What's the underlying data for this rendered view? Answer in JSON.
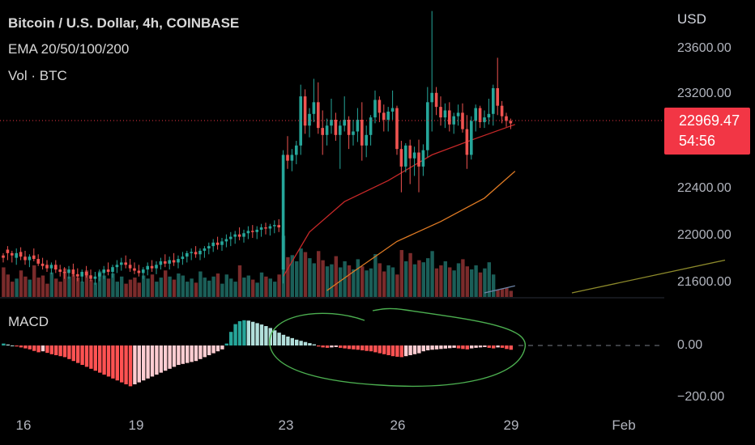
{
  "header": {
    "title": "Bitcoin / U.S. Dollar, 4h, COINBASE",
    "ema_label": "EMA 20/50/100/200",
    "vol_label": "Vol · BTC",
    "macd_label": "MACD"
  },
  "price_axis": {
    "currency": "USD",
    "ticks": [
      "23600.00",
      "23200.00",
      "22400.00",
      "22000.00",
      "21600.00"
    ],
    "macd_ticks": [
      "0.00",
      "−200.00"
    ]
  },
  "time_axis": {
    "ticks": [
      "16",
      "19",
      "23",
      "26",
      "29",
      "Feb"
    ]
  },
  "last_price": {
    "price": "22969.47",
    "countdown": "54:56"
  },
  "colors": {
    "up": "#26a69a",
    "down": "#ef5350",
    "up_volume": "#1b5e58",
    "down_volume": "#7a2b2b",
    "macd_up_strong": "#26a69a",
    "macd_up_weak": "#b2dfdb",
    "macd_down_strong": "#ff5252",
    "macd_down_weak": "#ffcdd2",
    "ema20": "#c62828",
    "ema50": "#e07b24",
    "ema100": "#8d8a2b",
    "annotation": "#4caf50",
    "price_line": "#f23645"
  },
  "chart_data": {
    "type": "candlestick",
    "timeframe": "4h",
    "y_range": [
      21520,
      23900
    ],
    "macd_range": [
      -260,
      130
    ],
    "candles": [
      [
        21840,
        21860,
        21780,
        21820
      ],
      [
        21890,
        21920,
        21800,
        21860
      ],
      [
        21860,
        21880,
        21780,
        21840
      ],
      [
        21820,
        21900,
        21760,
        21860
      ],
      [
        21870,
        21910,
        21800,
        21830
      ],
      [
        21830,
        21880,
        21760,
        21800
      ],
      [
        21800,
        21850,
        21740,
        21830
      ],
      [
        21840,
        21900,
        21790,
        21810
      ],
      [
        21810,
        21850,
        21750,
        21770
      ],
      [
        21770,
        21820,
        21720,
        21750
      ],
      [
        21760,
        21800,
        21700,
        21730
      ],
      [
        21730,
        21780,
        21680,
        21760
      ],
      [
        21760,
        21800,
        21690,
        21720
      ],
      [
        21720,
        21760,
        21660,
        21700
      ],
      [
        21700,
        21740,
        21640,
        21690
      ],
      [
        21690,
        21750,
        21640,
        21720
      ],
      [
        21720,
        21770,
        21660,
        21680
      ],
      [
        21680,
        21730,
        21620,
        21660
      ],
      [
        21660,
        21720,
        21610,
        21700
      ],
      [
        21700,
        21750,
        21650,
        21670
      ],
      [
        21670,
        21720,
        21620,
        21640
      ],
      [
        21640,
        21700,
        21590,
        21660
      ],
      [
        21660,
        21720,
        21620,
        21690
      ],
      [
        21690,
        21750,
        21640,
        21720
      ],
      [
        21720,
        21780,
        21670,
        21700
      ],
      [
        21700,
        21760,
        21650,
        21740
      ],
      [
        21740,
        21800,
        21690,
        21760
      ],
      [
        21760,
        21820,
        21710,
        21780
      ],
      [
        21780,
        21840,
        21730,
        21760
      ],
      [
        21760,
        21810,
        21700,
        21730
      ],
      [
        21730,
        21780,
        21680,
        21710
      ],
      [
        21710,
        21760,
        21660,
        21690
      ],
      [
        21690,
        21740,
        21640,
        21720
      ],
      [
        21720,
        21780,
        21670,
        21750
      ],
      [
        21750,
        21800,
        21700,
        21730
      ],
      [
        21730,
        21790,
        21680,
        21760
      ],
      [
        21760,
        21820,
        21720,
        21790
      ],
      [
        21790,
        21850,
        21740,
        21770
      ],
      [
        21770,
        21830,
        21720,
        21800
      ],
      [
        21800,
        21860,
        21750,
        21780
      ],
      [
        21780,
        21840,
        21730,
        21810
      ],
      [
        21810,
        21870,
        21760,
        21830
      ],
      [
        21830,
        21880,
        21780,
        21860
      ],
      [
        21860,
        21900,
        21800,
        21870
      ],
      [
        21870,
        21920,
        21820,
        21850
      ],
      [
        21850,
        21900,
        21800,
        21880
      ],
      [
        21880,
        21920,
        21820,
        21900
      ],
      [
        21900,
        21950,
        21850,
        21920
      ],
      [
        21920,
        21980,
        21870,
        21950
      ],
      [
        21950,
        22000,
        21890,
        21930
      ],
      [
        21930,
        21990,
        21880,
        21960
      ],
      [
        21960,
        22020,
        21910,
        21980
      ],
      [
        21980,
        22040,
        21920,
        22000
      ],
      [
        22000,
        22050,
        21940,
        22020
      ],
      [
        22020,
        22080,
        21970,
        22000
      ],
      [
        22000,
        22060,
        21950,
        22030
      ],
      [
        22030,
        22090,
        21980,
        22050
      ],
      [
        22050,
        22100,
        21990,
        22040
      ],
      [
        22040,
        22090,
        21980,
        22060
      ],
      [
        22060,
        22110,
        22000,
        22080
      ],
      [
        22080,
        22120,
        22020,
        22070
      ],
      [
        22070,
        22110,
        22010,
        22090
      ],
      [
        22090,
        22140,
        22030,
        22100
      ],
      [
        22100,
        22150,
        22040,
        22080
      ],
      [
        21720,
        22740,
        21600,
        22700
      ],
      [
        22700,
        22860,
        22580,
        22650
      ],
      [
        22650,
        22750,
        22560,
        22700
      ],
      [
        22700,
        22820,
        22620,
        22780
      ],
      [
        22780,
        23300,
        22700,
        23200
      ],
      [
        23200,
        23260,
        22880,
        22950
      ],
      [
        22950,
        23100,
        22850,
        23050
      ],
      [
        23050,
        23350,
        22980,
        23150
      ],
      [
        23150,
        23320,
        22880,
        22930
      ],
      [
        22930,
        23080,
        22700,
        22870
      ],
      [
        22870,
        23010,
        22780,
        22950
      ],
      [
        22950,
        23180,
        22880,
        23000
      ],
      [
        23000,
        23060,
        22820,
        22870
      ],
      [
        22870,
        22990,
        22580,
        22950
      ],
      [
        22950,
        23200,
        22900,
        23000
      ],
      [
        23000,
        23030,
        22750,
        22870
      ],
      [
        22870,
        23000,
        22780,
        22900
      ],
      [
        22900,
        23100,
        22810,
        23000
      ],
      [
        23000,
        23150,
        22650,
        22780
      ],
      [
        22780,
        22950,
        22680,
        22870
      ],
      [
        22870,
        23040,
        22780,
        23020
      ],
      [
        23020,
        23250,
        22970,
        23170
      ],
      [
        23170,
        23200,
        22980,
        23060
      ],
      [
        23060,
        23130,
        22900,
        23000
      ],
      [
        23000,
        23110,
        22900,
        23070
      ],
      [
        23070,
        23250,
        23000,
        23100
      ],
      [
        23100,
        23120,
        22700,
        22750
      ],
      [
        22750,
        22820,
        22380,
        22600
      ],
      [
        22600,
        22800,
        22550,
        22780
      ],
      [
        22780,
        22830,
        22450,
        22670
      ],
      [
        22670,
        22770,
        22520,
        22720
      ],
      [
        22720,
        22830,
        22380,
        22600
      ],
      [
        22600,
        22790,
        22520,
        22740
      ],
      [
        22740,
        23280,
        22680,
        23150
      ],
      [
        23150,
        23930,
        22900,
        23230
      ],
      [
        23230,
        23280,
        23040,
        23110
      ],
      [
        23110,
        23200,
        22950,
        23020
      ],
      [
        23020,
        23140,
        22930,
        23080
      ],
      [
        23080,
        23150,
        22900,
        22960
      ],
      [
        22960,
        23060,
        22880,
        23030
      ],
      [
        23030,
        23130,
        22950,
        23060
      ],
      [
        23060,
        23140,
        22890,
        22920
      ],
      [
        22920,
        23040,
        22580,
        22700
      ],
      [
        22700,
        23030,
        22660,
        22990
      ],
      [
        22990,
        23130,
        22900,
        23100
      ],
      [
        23100,
        23120,
        22930,
        22980
      ],
      [
        22980,
        23080,
        22930,
        23020
      ],
      [
        23020,
        23180,
        22960,
        23050
      ],
      [
        23050,
        23300,
        22950,
        23270
      ],
      [
        23270,
        23530,
        23040,
        23120
      ],
      [
        23120,
        23160,
        22970,
        23030
      ],
      [
        23030,
        23060,
        22940,
        22990
      ],
      [
        22990,
        23010,
        22920,
        22969.47
      ]
    ],
    "volume": [
      58,
      44,
      30,
      36,
      52,
      40,
      34,
      62,
      38,
      42,
      26,
      48,
      36,
      30,
      56,
      40,
      44,
      38,
      30,
      52,
      34,
      28,
      50,
      42,
      36,
      46,
      30,
      40,
      26,
      34,
      38,
      28,
      42,
      36,
      44,
      30,
      38,
      52,
      40,
      34,
      46,
      42,
      30,
      36,
      28,
      50,
      38,
      32,
      40,
      46,
      26,
      44,
      36,
      30,
      62,
      38,
      42,
      34,
      28,
      48,
      40,
      36,
      30,
      44,
      120,
      78,
      82,
      70,
      95,
      88,
      76,
      66,
      90,
      72,
      60,
      64,
      80,
      58,
      70,
      62,
      54,
      74,
      60,
      52,
      56,
      84,
      66,
      50,
      62,
      58,
      44,
      92,
      70,
      86,
      64,
      72,
      68,
      76,
      90,
      56,
      62,
      70,
      58,
      52,
      66,
      74,
      60,
      54,
      62,
      48,
      56,
      68,
      44,
      14,
      16,
      18,
      12
    ],
    "ema": [
      {
        "period": 20,
        "values": [
          [
            64,
            21660
          ],
          [
            70,
            22040
          ],
          [
            78,
            22300
          ],
          [
            88,
            22480
          ],
          [
            98,
            22700
          ],
          [
            108,
            22840
          ],
          [
            117,
            22960
          ]
        ]
      },
      {
        "period": 50,
        "values": [
          [
            74,
            21540
          ],
          [
            80,
            21700
          ],
          [
            90,
            21960
          ],
          [
            100,
            22130
          ],
          [
            110,
            22330
          ],
          [
            117,
            22560
          ]
        ]
      },
      {
        "period": 100,
        "values": [
          [
            110,
            21520
          ],
          [
            117,
            21580
          ]
        ]
      },
      {
        "period": 200,
        "values": [
          [
            130,
            21520
          ],
          [
            165,
            21800
          ]
        ]
      }
    ],
    "macd_histogram": [
      10,
      5,
      0,
      -5,
      -10,
      -15,
      -20,
      -28,
      -35,
      -30,
      -38,
      -45,
      -50,
      -55,
      -60,
      -70,
      -80,
      -90,
      -100,
      -110,
      -120,
      -130,
      -140,
      -150,
      -160,
      -170,
      -180,
      -190,
      -200,
      -210,
      -200,
      -190,
      -180,
      -170,
      -160,
      -150,
      -140,
      -130,
      -120,
      -110,
      -100,
      -95,
      -90,
      -85,
      -80,
      -70,
      -60,
      -50,
      -40,
      -30,
      -20,
      10,
      70,
      110,
      125,
      130,
      128,
      122,
      115,
      108,
      100,
      90,
      78,
      66,
      55,
      46,
      38,
      30,
      24,
      18,
      12,
      6,
      -5,
      -10,
      -12,
      -10,
      -8,
      -12,
      -15,
      -18,
      -20,
      -22,
      -25,
      -28,
      -30,
      -35,
      -40,
      -45,
      -50,
      -55,
      -58,
      -60,
      -55,
      -50,
      -45,
      -40,
      -30,
      -25,
      -22,
      -20,
      -18,
      -16,
      -14,
      -12,
      -15,
      -18,
      -20,
      -15,
      -12,
      -10,
      -8,
      -12,
      -15,
      -10,
      -12,
      -18,
      -22
    ],
    "macd_offset": 0,
    "time_ticks": [
      {
        "label": "16",
        "index": 3
      },
      {
        "label": "19",
        "index": 36
      },
      {
        "label": "23",
        "index": 79
      },
      {
        "label": "26",
        "index": 109
      }
    ],
    "grid": false
  }
}
